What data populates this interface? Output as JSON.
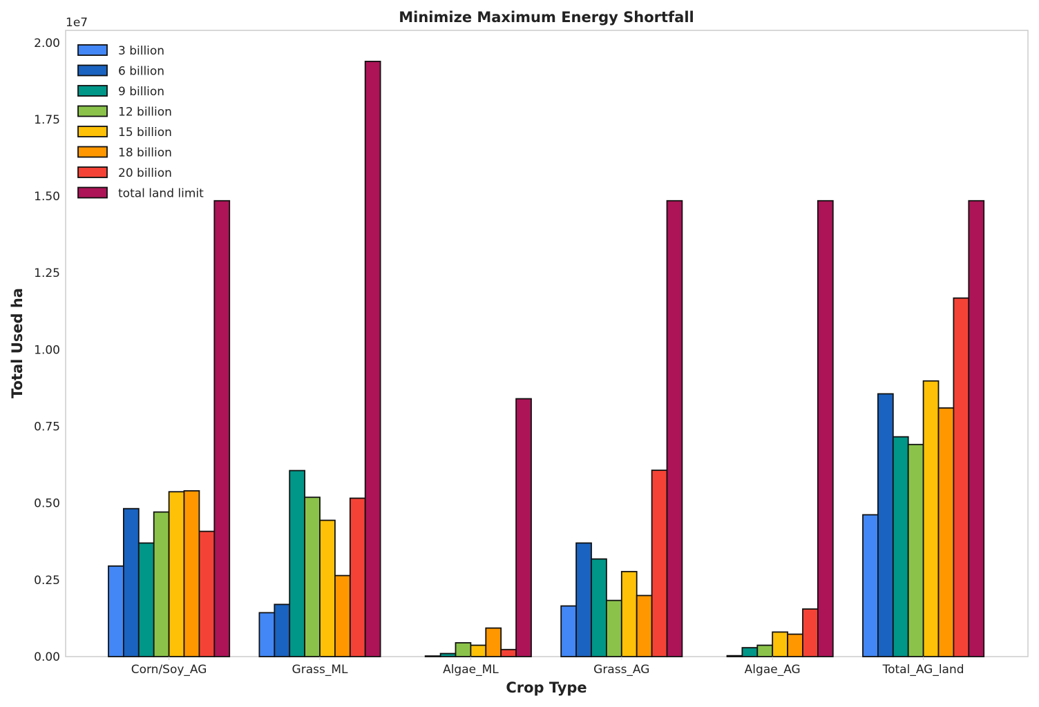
{
  "chart_data": {
    "type": "bar",
    "title": "Minimize Maximum Energy Shortfall",
    "xlabel": "Crop Type",
    "ylabel": "Total Used ha",
    "y_scale_note": "1e7",
    "ylim": [
      0,
      20400000
    ],
    "yticks": [
      0,
      2500000,
      5000000,
      7500000,
      10000000,
      12500000,
      15000000,
      17500000,
      20000000
    ],
    "ytick_labels": [
      "0.00",
      "0.25",
      "0.50",
      "0.75",
      "1.00",
      "1.25",
      "1.50",
      "1.75",
      "2.00"
    ],
    "categories": [
      "Corn/Soy_AG",
      "Grass_ML",
      "Algae_ML",
      "Grass_AG",
      "Algae_AG",
      "Total_AG_land"
    ],
    "grid": false,
    "legend_position": "top-left",
    "series": [
      {
        "name": "3 billion",
        "color": "#4287f5",
        "values": [
          2950000,
          1430000,
          0,
          1650000,
          0,
          4620000
        ]
      },
      {
        "name": "6 billion",
        "color": "#1a63c0",
        "values": [
          4820000,
          1700000,
          20000,
          3700000,
          30000,
          8560000
        ]
      },
      {
        "name": "9 billion",
        "color": "#009688",
        "values": [
          3700000,
          6060000,
          100000,
          3180000,
          290000,
          7160000
        ]
      },
      {
        "name": "12 billion",
        "color": "#8bc34a",
        "values": [
          4710000,
          5190000,
          450000,
          1830000,
          370000,
          6910000
        ]
      },
      {
        "name": "15 billion",
        "color": "#ffc107",
        "values": [
          5370000,
          4440000,
          370000,
          2770000,
          800000,
          8980000
        ]
      },
      {
        "name": "18 billion",
        "color": "#ff9800",
        "values": [
          5400000,
          2640000,
          930000,
          1990000,
          730000,
          8100000
        ]
      },
      {
        "name": "20 billion",
        "color": "#f44336",
        "values": [
          4080000,
          5160000,
          230000,
          6070000,
          1550000,
          11680000
        ]
      },
      {
        "name": "total land limit",
        "color": "#ad1457",
        "values": [
          14850000,
          19390000,
          8400000,
          14850000,
          14850000,
          14850000
        ]
      }
    ]
  }
}
